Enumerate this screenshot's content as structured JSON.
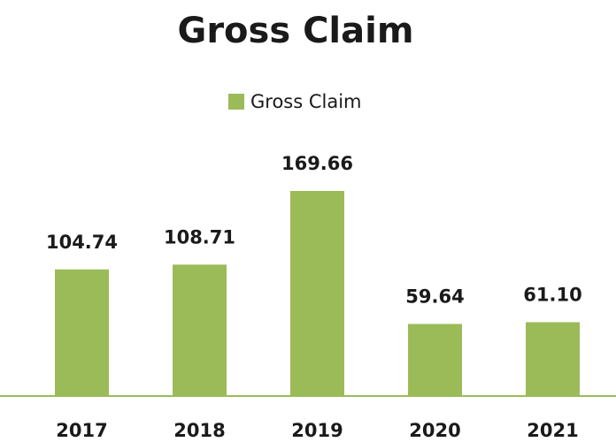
{
  "chart_data": {
    "type": "bar",
    "title": "Gross Claim",
    "categories": [
      "2017",
      "2018",
      "2019",
      "2020",
      "2021"
    ],
    "series": [
      {
        "name": "Gross Claim",
        "color": "#9bbb59",
        "values": [
          104.74,
          108.71,
          169.66,
          59.64,
          61.1
        ],
        "value_labels": [
          "104.74",
          "108.71",
          "169.66",
          "59.64",
          "61.10"
        ]
      }
    ],
    "legend": "top"
  }
}
